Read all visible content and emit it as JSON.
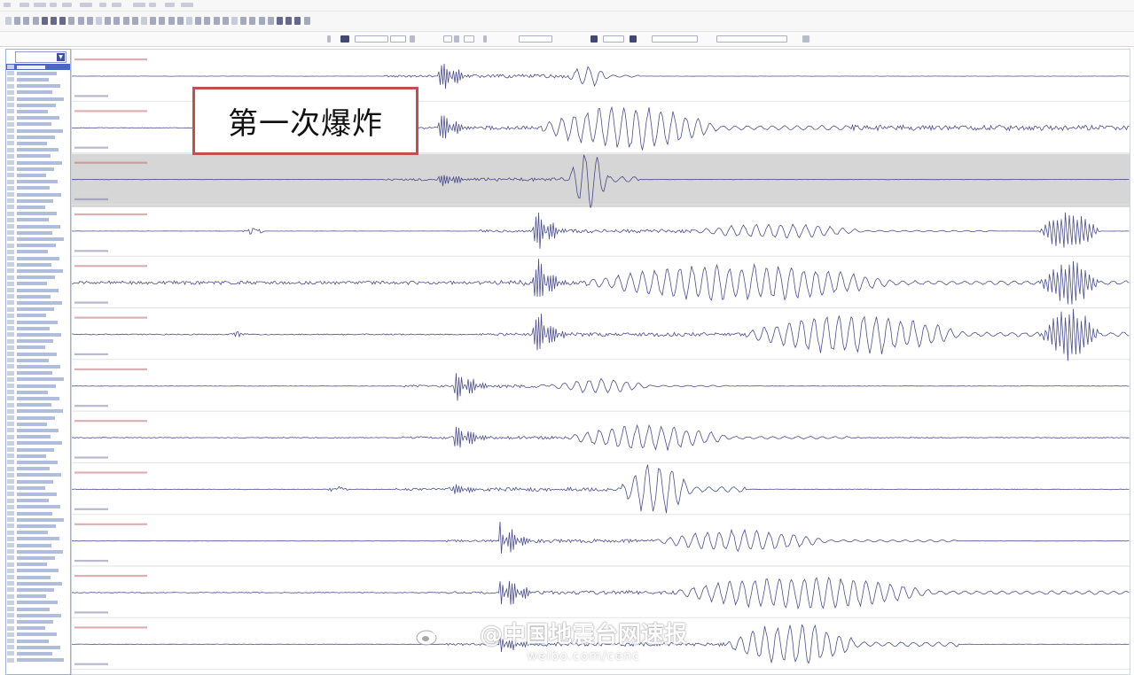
{
  "annotation": {
    "text": "第一次爆炸"
  },
  "watermark": {
    "main": "@中国地震台网速报",
    "url": "weibo.com/cenc"
  },
  "colors": {
    "trace": "#2b2f7a",
    "highlight_band": "#d6d6d6",
    "annotation_border": "#c0504d",
    "selected_row": "#4a66c4"
  },
  "icons": [
    "dropdown-arrow-icon",
    "weibo-icon"
  ]
}
